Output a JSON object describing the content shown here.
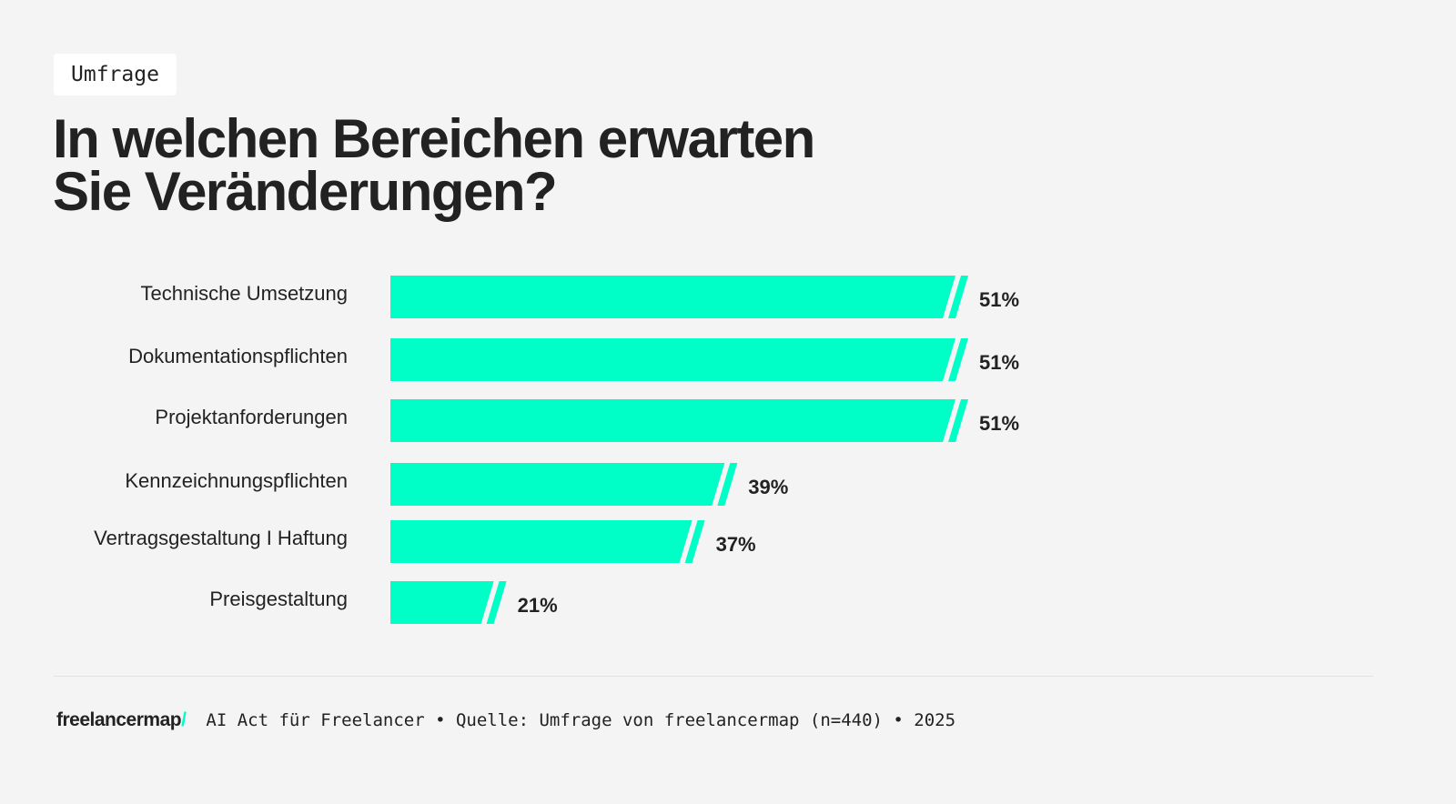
{
  "tag": "Umfrage",
  "title_line1": "In welchen Bereichen erwarten",
  "title_line2": "Sie Veränderungen?",
  "chart_data": {
    "type": "bar",
    "orientation": "horizontal",
    "categories": [
      "Technische Umsetzung",
      "Dokumentationspflichten",
      "Projektanforderungen",
      "Kennzeichnungspflichten",
      "Vertragsgestaltung I Haftung",
      "Preisgestaltung"
    ],
    "values": [
      51,
      51,
      51,
      39,
      37,
      21
    ],
    "value_labels": [
      "51%",
      "51%",
      "51%",
      "39%",
      "37%",
      "21%"
    ],
    "unit": "%",
    "bar_color": "#00ffc6",
    "grid": false
  },
  "footer": {
    "logo": "freelancermap",
    "logo_slash": "/",
    "text": "AI Act für Freelancer • Quelle: Umfrage von freelancermap (n=440) • 2025"
  }
}
